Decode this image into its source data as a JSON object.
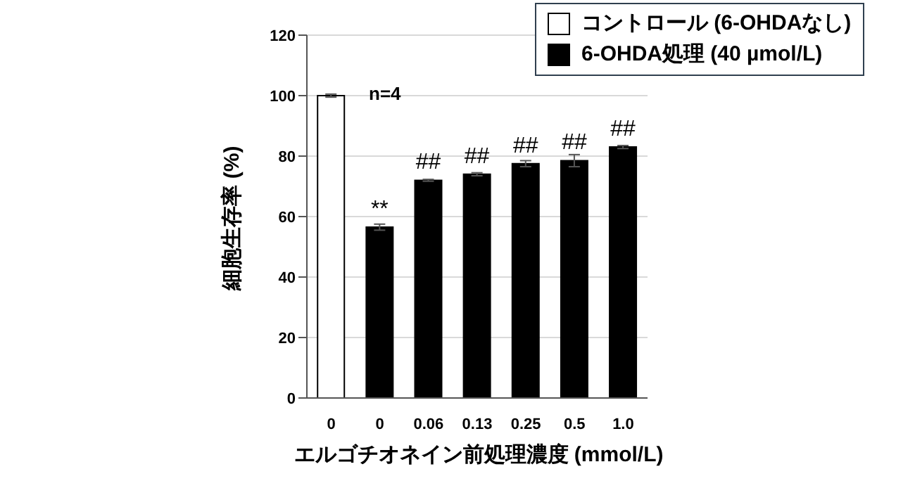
{
  "chart_data": {
    "type": "bar",
    "xlabel": "エルゴチオネイン前処理濃度  (mmol/L)",
    "ylabel": "細胞生存率  (%)",
    "categories": [
      "0",
      "0",
      "0.06",
      "0.13",
      "0.25",
      "0.5",
      "1.0"
    ],
    "series": [
      {
        "name": "コントロール (6-OHDAなし)",
        "color": "#ffffff",
        "values": [
          100,
          null,
          null,
          null,
          null,
          null,
          null
        ],
        "errors": [
          0.5,
          null,
          null,
          null,
          null,
          null,
          null
        ]
      },
      {
        "name": "6-OHDA処理  (40 µmol/L)",
        "color": "#000000",
        "values": [
          null,
          56.5,
          72,
          74,
          77.5,
          78.5,
          83
        ],
        "errors": [
          null,
          1,
          0.3,
          0.5,
          1,
          2,
          0.5
        ],
        "value_labels": [
          null,
          "**",
          "##",
          "##",
          "##",
          "##",
          "##"
        ]
      }
    ],
    "stacked": true,
    "ylim": [
      0,
      120
    ],
    "yticks": [
      0,
      20,
      40,
      60,
      80,
      100,
      120
    ],
    "grid": "y",
    "legend": "top right",
    "annotations": [
      "n=4"
    ]
  }
}
